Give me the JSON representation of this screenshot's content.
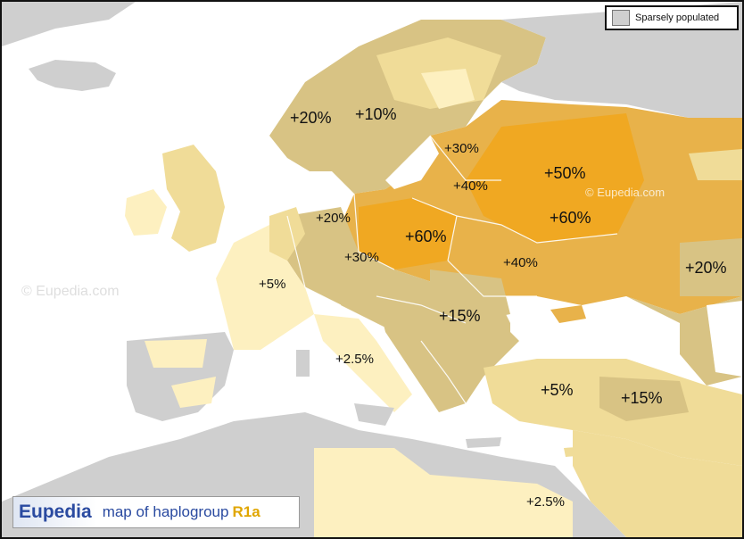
{
  "legend": {
    "label": "Sparsely populated",
    "swatch_color": "#cfcfcf"
  },
  "title": {
    "brand": "Eupedia",
    "text": "map of haplogroup",
    "haplogroup": "R1a"
  },
  "watermarks": [
    "© Eupedia.com",
    "© Eupedia.com"
  ],
  "frequency_labels": [
    {
      "id": "norway",
      "text": "+20%"
    },
    {
      "id": "sweden",
      "text": "+10%"
    },
    {
      "id": "baltic",
      "text": "+30%"
    },
    {
      "id": "russia",
      "text": "+50%"
    },
    {
      "id": "belarus",
      "text": "+40%"
    },
    {
      "id": "western-russia",
      "text": "+60%"
    },
    {
      "id": "germany",
      "text": "+20%"
    },
    {
      "id": "poland",
      "text": "+60%"
    },
    {
      "id": "czechia",
      "text": "+30%"
    },
    {
      "id": "ukraine",
      "text": "+40%"
    },
    {
      "id": "france",
      "text": "+5%"
    },
    {
      "id": "balkans",
      "text": "+15%"
    },
    {
      "id": "caucasus",
      "text": "+20%"
    },
    {
      "id": "italy",
      "text": "+2.5%"
    },
    {
      "id": "anatolia",
      "text": "+5%"
    },
    {
      "id": "eastern-anatolia",
      "text": "+15%"
    },
    {
      "id": "levant",
      "text": "+2.5%"
    }
  ],
  "colors": {
    "sea": "#ffffff",
    "sparse_land": "#cfcfcf",
    "low": "#fdf0c0",
    "mid_low": "#f0dc98",
    "mid": "#d8c384",
    "high": "#e8b24a",
    "highest": "#f0a822"
  }
}
